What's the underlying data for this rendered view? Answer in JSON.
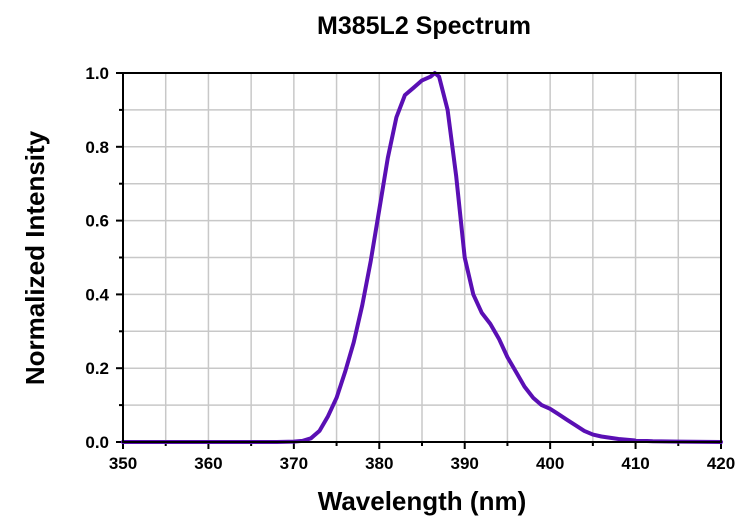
{
  "chart_data": {
    "type": "line",
    "title": "M385L2 Spectrum",
    "xlabel": "Wavelength (nm)",
    "ylabel": "Normalized Intensity",
    "xlim": [
      350,
      420
    ],
    "ylim": [
      0,
      1.0
    ],
    "x_ticks": [
      "350",
      "360",
      "370",
      "380",
      "390",
      "400",
      "410",
      "420"
    ],
    "y_ticks": [
      "0.0",
      "0.2",
      "0.4",
      "0.6",
      "0.8",
      "1.0"
    ],
    "grid": true,
    "series": [
      {
        "color": "#5a0fb4",
        "x": [
          350,
          360,
          368,
          370,
          371,
          372,
          373,
          374,
          375,
          376,
          377,
          378,
          379,
          380,
          381,
          382,
          383,
          384,
          385,
          386,
          386.5,
          387,
          388,
          389,
          390,
          391,
          392,
          393,
          394,
          395,
          396,
          397,
          398,
          399,
          400,
          401,
          402,
          403,
          404,
          405,
          406,
          408,
          410,
          412,
          415,
          420
        ],
        "y": [
          0.0,
          0.0,
          0.0,
          0.001,
          0.003,
          0.01,
          0.03,
          0.07,
          0.12,
          0.19,
          0.27,
          0.37,
          0.49,
          0.63,
          0.77,
          0.88,
          0.94,
          0.96,
          0.98,
          0.99,
          1.0,
          0.99,
          0.9,
          0.72,
          0.5,
          0.4,
          0.35,
          0.32,
          0.28,
          0.23,
          0.19,
          0.15,
          0.12,
          0.1,
          0.09,
          0.075,
          0.06,
          0.045,
          0.03,
          0.02,
          0.015,
          0.008,
          0.004,
          0.002,
          0.001,
          0.0
        ]
      }
    ]
  }
}
